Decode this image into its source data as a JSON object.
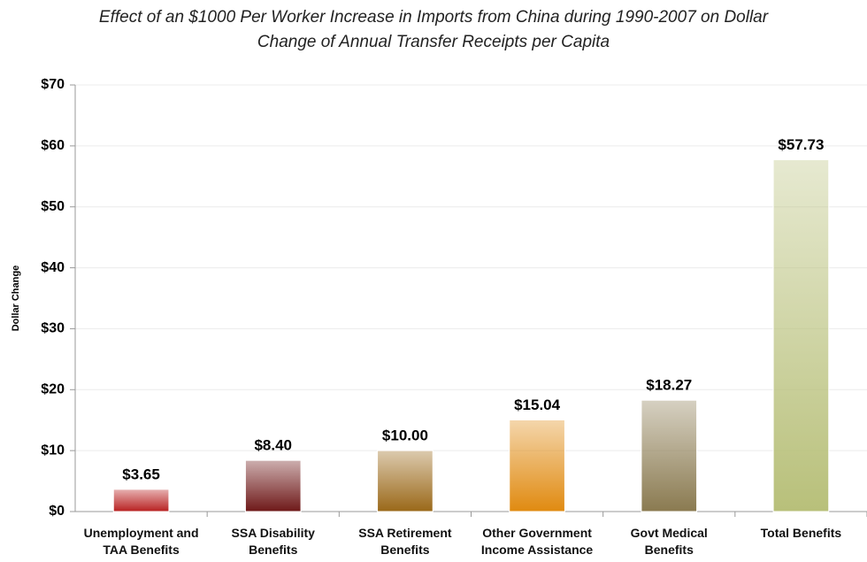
{
  "chart_data": {
    "type": "bar",
    "title": "Effect of an $1000 Per Worker Increase in Imports from China during 1990-2007 on Dollar Change of Annual Transfer Receipts per Capita",
    "y_label": "Dollar Change",
    "categories": [
      "Unemployment and TAA Benefits",
      "SSA Disability Benefits",
      "SSA Retirement Benefits",
      "Other Government Income Assistance",
      "Govt Medical Benefits",
      "Total Benefits"
    ],
    "values": [
      3.65,
      8.4,
      10.0,
      15.04,
      18.27,
      57.73
    ],
    "value_labels": [
      "$3.65",
      "$8.40",
      "$10.00",
      "$15.04",
      "$18.27",
      "$57.73"
    ],
    "colors": [
      "#b82020",
      "#6e1818",
      "#9a6818",
      "#e08a10",
      "#8a7a50",
      "#b8c07a"
    ],
    "ylim": [
      0,
      70
    ],
    "yticks": [
      {
        "value": 0,
        "label": "$0"
      },
      {
        "value": 10,
        "label": "$10"
      },
      {
        "value": 20,
        "label": "$20"
      },
      {
        "value": 30,
        "label": "$30"
      },
      {
        "value": 40,
        "label": "$40"
      },
      {
        "value": 50,
        "label": "$50"
      },
      {
        "value": 60,
        "label": "$60"
      },
      {
        "value": 70,
        "label": "$70"
      }
    ],
    "grid": true
  }
}
